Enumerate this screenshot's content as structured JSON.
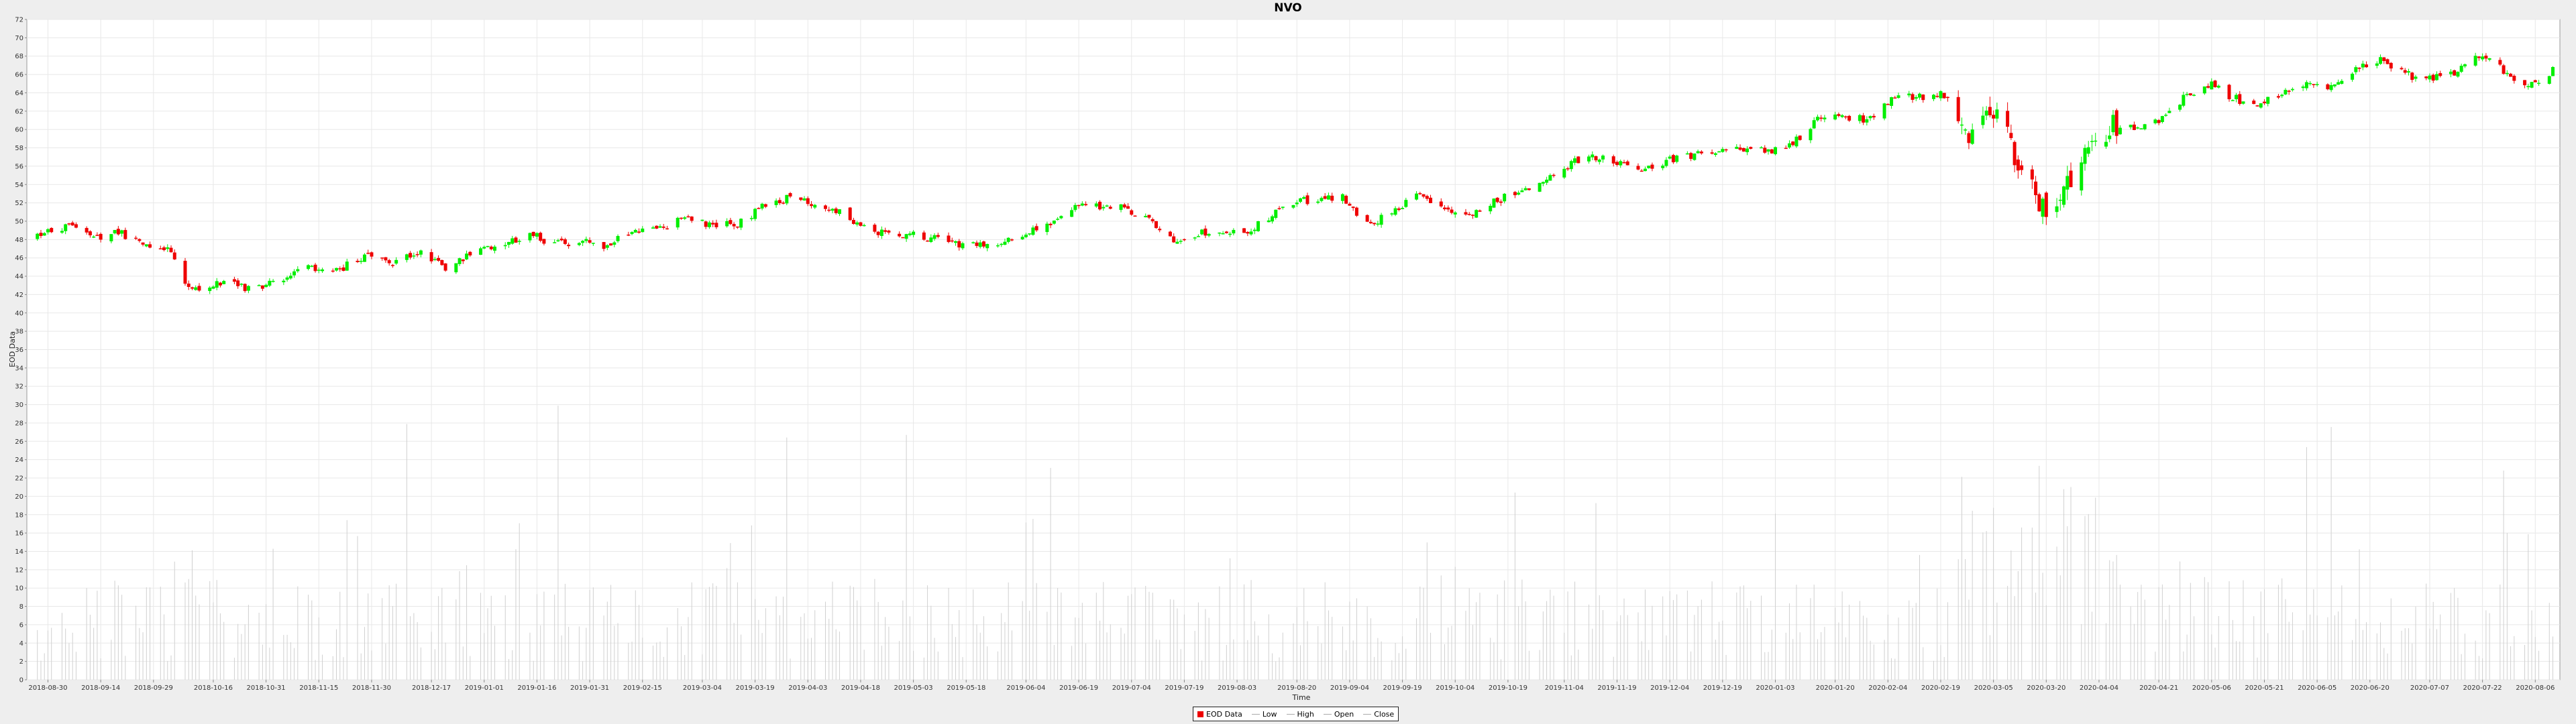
{
  "chart_data": {
    "type": "candlestick",
    "title": "NVO",
    "xlabel": "Time",
    "ylabel": "EOD Data",
    "ylim": [
      0,
      72
    ],
    "yticks": [
      0,
      2,
      4,
      6,
      8,
      10,
      12,
      14,
      16,
      18,
      20,
      22,
      24,
      26,
      28,
      30,
      32,
      34,
      36,
      38,
      40,
      42,
      44,
      46,
      48,
      50,
      52,
      54,
      56,
      58,
      60,
      62,
      64,
      66,
      68,
      70,
      72
    ],
    "xlim": [
      "2018-08-24",
      "2020-08-13"
    ],
    "xticks": [
      "2018-08-30",
      "2018-09-14",
      "2018-09-29",
      "2018-10-16",
      "2018-10-31",
      "2018-11-15",
      "2018-11-30",
      "2018-12-17",
      "2019-01-01",
      "2019-01-16",
      "2019-01-31",
      "2019-02-15",
      "2019-03-04",
      "2019-03-19",
      "2019-04-03",
      "2019-04-18",
      "2019-05-03",
      "2019-05-18",
      "2019-06-04",
      "2019-06-19",
      "2019-07-04",
      "2019-07-19",
      "2019-08-03",
      "2019-08-20",
      "2019-09-04",
      "2019-09-19",
      "2019-10-04",
      "2019-10-19",
      "2019-11-04",
      "2019-11-19",
      "2019-12-04",
      "2019-12-19",
      "2020-01-03",
      "2020-01-20",
      "2020-02-04",
      "2020-02-19",
      "2020-03-05",
      "2020-03-20",
      "2020-04-04",
      "2020-04-21",
      "2020-05-06",
      "2020-05-21",
      "2020-06-05",
      "2020-06-20",
      "2020-07-07",
      "2020-07-22",
      "2020-08-06"
    ],
    "grid": true,
    "legend_position": "bottom-center",
    "series": [
      {
        "name": "EOD Data",
        "role": "price"
      },
      {
        "name": "Low",
        "role": "low"
      },
      {
        "name": "High",
        "role": "high"
      },
      {
        "name": "Open",
        "role": "open"
      },
      {
        "name": "Close",
        "role": "close"
      }
    ],
    "price_path": [
      [
        "2018-08-27",
        48.2
      ],
      [
        "2018-09-05",
        49.7
      ],
      [
        "2018-09-12",
        48.0
      ],
      [
        "2018-09-19",
        48.8
      ],
      [
        "2018-09-26",
        47.3
      ],
      [
        "2018-10-03",
        47.0
      ],
      [
        "2018-10-08",
        43.5
      ],
      [
        "2018-10-12",
        42.0
      ],
      [
        "2018-10-19",
        43.5
      ],
      [
        "2018-10-26",
        42.5
      ],
      [
        "2018-11-02",
        43.5
      ],
      [
        "2018-11-12",
        44.8
      ],
      [
        "2018-11-20",
        44.5
      ],
      [
        "2018-11-28",
        46.3
      ],
      [
        "2018-12-06",
        45.6
      ],
      [
        "2018-12-14",
        46.8
      ],
      [
        "2018-12-21",
        44.8
      ],
      [
        "2018-12-28",
        46.3
      ],
      [
        "2019-01-07",
        47.5
      ],
      [
        "2019-01-14",
        48.5
      ],
      [
        "2019-01-22",
        47.5
      ],
      [
        "2019-01-29",
        48.0
      ],
      [
        "2019-02-05",
        47.2
      ],
      [
        "2019-02-12",
        49.0
      ],
      [
        "2019-02-20",
        49.3
      ],
      [
        "2019-02-27",
        50.3
      ],
      [
        "2019-03-07",
        49.5
      ],
      [
        "2019-03-14",
        49.8
      ],
      [
        "2019-03-21",
        51.5
      ],
      [
        "2019-03-28",
        52.5
      ],
      [
        "2019-04-05",
        51.8
      ],
      [
        "2019-04-12",
        51.0
      ],
      [
        "2019-04-19",
        49.5
      ],
      [
        "2019-04-26",
        48.5
      ],
      [
        "2019-05-03",
        48.5
      ],
      [
        "2019-05-10",
        48.0
      ],
      [
        "2019-05-17",
        47.5
      ],
      [
        "2019-05-24",
        47.3
      ],
      [
        "2019-06-01",
        48.5
      ],
      [
        "2019-06-10",
        49.5
      ],
      [
        "2019-06-17",
        51.5
      ],
      [
        "2019-06-24",
        51.5
      ],
      [
        "2019-07-01",
        51.5
      ],
      [
        "2019-07-08",
        50.5
      ],
      [
        "2019-07-15",
        48.0
      ],
      [
        "2019-07-22",
        48.5
      ],
      [
        "2019-07-29",
        49.0
      ],
      [
        "2019-08-05",
        48.3
      ],
      [
        "2019-08-12",
        50.5
      ],
      [
        "2019-08-19",
        52.0
      ],
      [
        "2019-08-26",
        52.5
      ],
      [
        "2019-09-02",
        52.8
      ],
      [
        "2019-09-09",
        49.5
      ],
      [
        "2019-09-16",
        51.0
      ],
      [
        "2019-09-23",
        52.8
      ],
      [
        "2019-09-30",
        51.5
      ],
      [
        "2019-10-07",
        50.5
      ],
      [
        "2019-10-14",
        52.0
      ],
      [
        "2019-10-21",
        53.0
      ],
      [
        "2019-10-28",
        54.0
      ],
      [
        "2019-11-04",
        56.0
      ],
      [
        "2019-11-11",
        57.0
      ],
      [
        "2019-11-18",
        56.5
      ],
      [
        "2019-11-25",
        55.5
      ],
      [
        "2019-12-02",
        56.5
      ],
      [
        "2019-12-09",
        57.0
      ],
      [
        "2019-12-16",
        57.5
      ],
      [
        "2019-12-23",
        58.0
      ],
      [
        "2020-01-01",
        57.5
      ],
      [
        "2020-01-08",
        58.5
      ],
      [
        "2020-01-15",
        61.0
      ],
      [
        "2020-01-22",
        61.5
      ],
      [
        "2020-01-29",
        61.0
      ],
      [
        "2020-02-05",
        63.5
      ],
      [
        "2020-02-12",
        63.5
      ],
      [
        "2020-02-19",
        64.0
      ],
      [
        "2020-02-24",
        61.0
      ],
      [
        "2020-02-28",
        59.5
      ],
      [
        "2020-03-04",
        62.5
      ],
      [
        "2020-03-09",
        60.0
      ],
      [
        "2020-03-13",
        55.0
      ],
      [
        "2020-03-17",
        52.5
      ],
      [
        "2020-03-20",
        50.5
      ],
      [
        "2020-03-25",
        53.5
      ],
      [
        "2020-03-31",
        58.5
      ],
      [
        "2020-04-07",
        60.5
      ],
      [
        "2020-04-14",
        60.0
      ],
      [
        "2020-04-21",
        61.0
      ],
      [
        "2020-04-28",
        63.5
      ],
      [
        "2020-05-05",
        65.0
      ],
      [
        "2020-05-12",
        63.5
      ],
      [
        "2020-05-19",
        62.5
      ],
      [
        "2020-05-26",
        64.0
      ],
      [
        "2020-06-02",
        65.0
      ],
      [
        "2020-06-09",
        64.8
      ],
      [
        "2020-06-16",
        66.5
      ],
      [
        "2020-06-23",
        67.5
      ],
      [
        "2020-06-30",
        66.0
      ],
      [
        "2020-07-07",
        65.5
      ],
      [
        "2020-07-14",
        66.0
      ],
      [
        "2020-07-21",
        68.0
      ],
      [
        "2020-07-28",
        66.5
      ],
      [
        "2020-08-04",
        64.5
      ],
      [
        "2020-08-11",
        66.5
      ]
    ],
    "volume_note": "thin vertical grey bars at bottom, typical 4-14, spikes to ~35",
    "colors": {
      "up": "#00ee00",
      "down": "#ee0000",
      "volume": "#d0d0d0",
      "grid": "#e8e8e8",
      "background": "#ffffff"
    }
  }
}
